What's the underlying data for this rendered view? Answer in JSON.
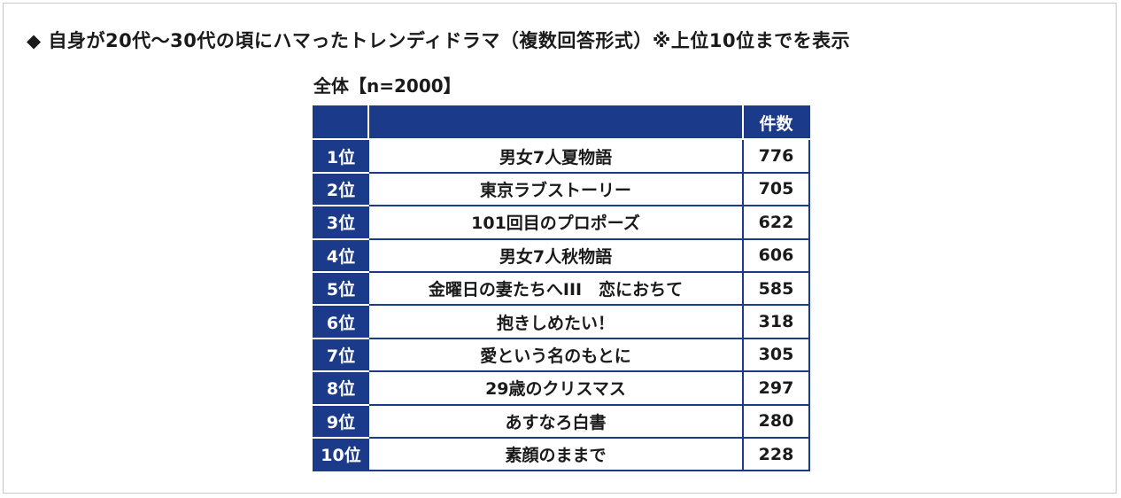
{
  "heading": "◆ 自身が20代～30代の頃にハマったトレンディドラマ（複数回答形式）※上位10位までを表示",
  "subtitle": "全体【n=2000】",
  "table": {
    "header": {
      "rank": "",
      "title": "",
      "count": "件数"
    },
    "rows": [
      {
        "rank": "1位",
        "title": "男女7人夏物語",
        "count": "776"
      },
      {
        "rank": "2位",
        "title": "東京ラブストーリー",
        "count": "705"
      },
      {
        "rank": "3位",
        "title": "101回目のプロポーズ",
        "count": "622"
      },
      {
        "rank": "4位",
        "title": "男女7人秋物語",
        "count": "606"
      },
      {
        "rank": "5位",
        "title": "金曜日の妻たちへIII　恋におちて",
        "count": "585"
      },
      {
        "rank": "6位",
        "title": "抱きしめたい！",
        "count": "318"
      },
      {
        "rank": "7位",
        "title": "愛という名のもとに",
        "count": "305"
      },
      {
        "rank": "8位",
        "title": "29歳のクリスマス",
        "count": "297"
      },
      {
        "rank": "9位",
        "title": "あすなろ白書",
        "count": "280"
      },
      {
        "rank": "10位",
        "title": "素顔のままで",
        "count": "228"
      }
    ]
  },
  "colors": {
    "header_bg": "#1c3a8a",
    "header_text": "#ffffff",
    "body_text": "#1a1a1a"
  }
}
